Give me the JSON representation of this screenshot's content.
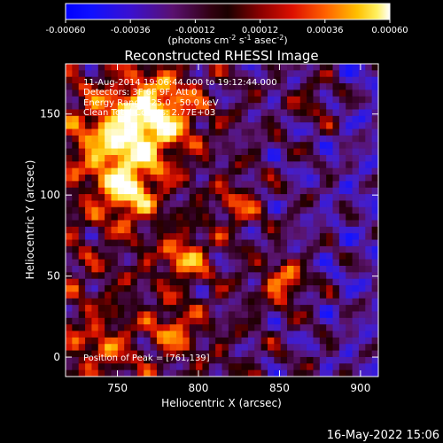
{
  "chart_data": {
    "type": "heatmap",
    "title": "Reconstructed RHESSI Image",
    "xlabel": "Heliocentric X (arcsec)",
    "ylabel": "Heliocentric Y (arcsec)",
    "xlim": [
      718,
      911
    ],
    "ylim": [
      -12,
      181
    ],
    "xticks": [
      750,
      800,
      850,
      900
    ],
    "yticks": [
      0,
      50,
      100,
      150
    ],
    "info_lines": [
      "11-Aug-2014 19:06:44.000 to 19:12:44.000",
      "Detectors: 3F 6F 9F, Att 0",
      "Energy Range: 25.0 - 50.0 keV",
      "Clean    Total Counts: 2.77E+03"
    ],
    "peak_label": "Position of Peak = [761,139]",
    "peak": [
      761,
      139
    ],
    "colorbar": {
      "ticks": [
        "-0.00060",
        "-0.00036",
        "-0.00012",
        "0.00012",
        "0.00036",
        "0.00060"
      ],
      "label": "(photons cm",
      "label_sup1": "-2",
      "label_mid": " s",
      "label_sup2": "-1",
      "label_end": " asec",
      "label_sup3": "-2",
      "label_close": ")",
      "range": [
        -0.0006,
        0.0006
      ]
    },
    "timestamp": "16-May-2022 15:06",
    "colors": {
      "background": "#000000",
      "text": "#ffffff"
    }
  }
}
